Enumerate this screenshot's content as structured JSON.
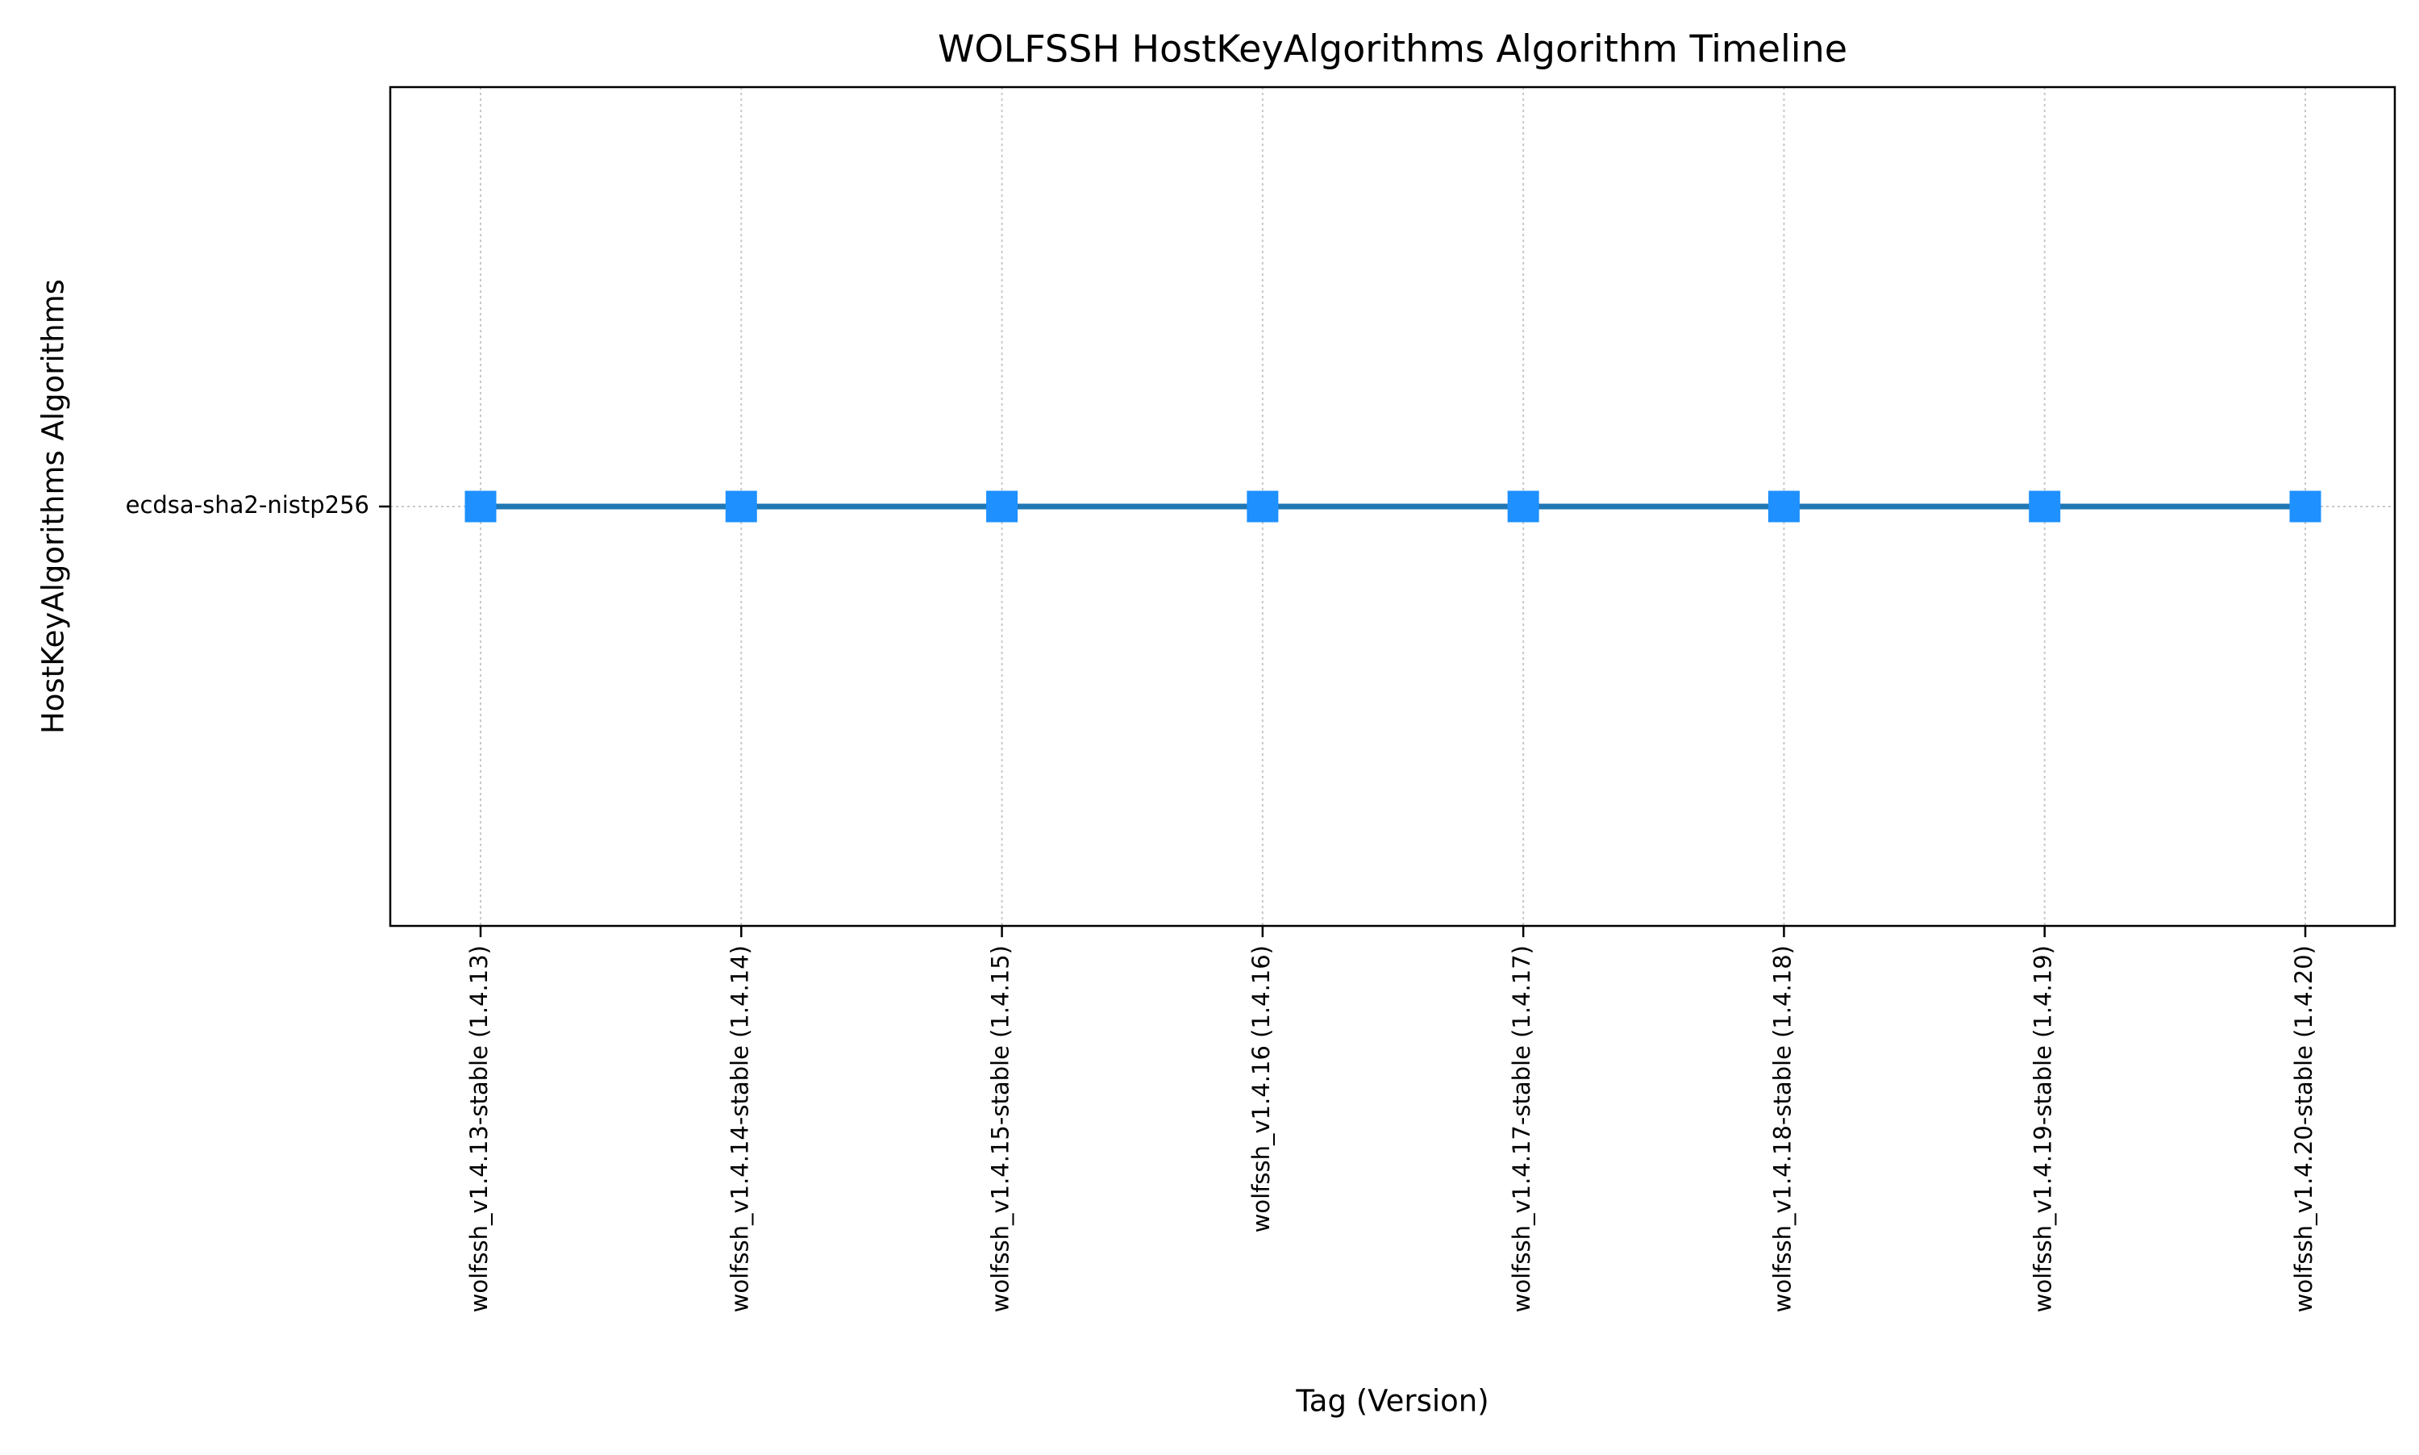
{
  "chart_data": {
    "type": "line",
    "title": "WOLFSSH HostKeyAlgorithms Algorithm Timeline",
    "xlabel": "Tag (Version)",
    "ylabel": "HostKeyAlgorithms Algorithms",
    "categories": [
      "wolfssh_v1.4.13-stable (1.4.13)",
      "wolfssh_v1.4.14-stable (1.4.14)",
      "wolfssh_v1.4.15-stable (1.4.15)",
      "wolfssh_v1.4.16 (1.4.16)",
      "wolfssh_v1.4.17-stable (1.4.17)",
      "wolfssh_v1.4.18-stable (1.4.18)",
      "wolfssh_v1.4.19-stable (1.4.19)",
      "wolfssh_v1.4.20-stable (1.4.20)"
    ],
    "y_categories": [
      "ecdsa-sha2-nistp256"
    ],
    "series": [
      {
        "values": [
          "ecdsa-sha2-nistp256",
          "ecdsa-sha2-nistp256",
          "ecdsa-sha2-nistp256",
          "ecdsa-sha2-nistp256",
          "ecdsa-sha2-nistp256",
          "ecdsa-sha2-nistp256",
          "ecdsa-sha2-nistp256",
          "ecdsa-sha2-nistp256"
        ],
        "color": "#1e90ff",
        "line_color": "#1f77b4",
        "marker": "square"
      }
    ],
    "grid": true,
    "legend": "none"
  }
}
